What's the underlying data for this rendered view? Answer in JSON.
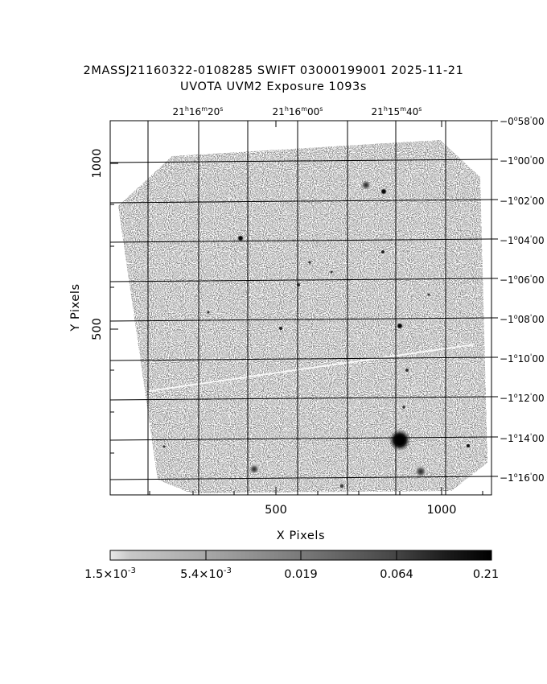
{
  "header": {
    "title_line_1": "2MASSJ21160322-0108285 SWIFT 03000199001 2025-11-21",
    "title_line_2": "UVOTA UVM2 Exposure       1093s"
  },
  "axes": {
    "xlabel": "X Pixels",
    "ylabel": "Y Pixels",
    "x_ticks": [
      "500",
      "1000"
    ],
    "y_ticks": [
      "1000",
      "500"
    ],
    "ra_ticks": [
      {
        "h": "21",
        "m": "16",
        "s": "20"
      },
      {
        "h": "21",
        "m": "16",
        "s": "00"
      },
      {
        "h": "21",
        "m": "15",
        "s": "40"
      }
    ],
    "dec_ticks": [
      {
        "d": "0",
        "m": "58",
        "s": "00"
      },
      {
        "d": "1",
        "m": "00",
        "s": "00"
      },
      {
        "d": "1",
        "m": "02",
        "s": "00"
      },
      {
        "d": "1",
        "m": "04",
        "s": "00"
      },
      {
        "d": "1",
        "m": "06",
        "s": "00"
      },
      {
        "d": "1",
        "m": "08",
        "s": "00"
      },
      {
        "d": "1",
        "m": "10",
        "s": "00"
      },
      {
        "d": "1",
        "m": "12",
        "s": "00"
      },
      {
        "d": "1",
        "m": "14",
        "s": "00"
      },
      {
        "d": "1",
        "m": "16",
        "s": "00"
      }
    ]
  },
  "colorbar": {
    "labels": [
      {
        "mant": "1.5",
        "exp": "-3"
      },
      {
        "mant": "5.4",
        "exp": "-3"
      },
      {
        "text": "0.019"
      },
      {
        "text": "0.064"
      },
      {
        "text": "0.21"
      }
    ]
  }
}
